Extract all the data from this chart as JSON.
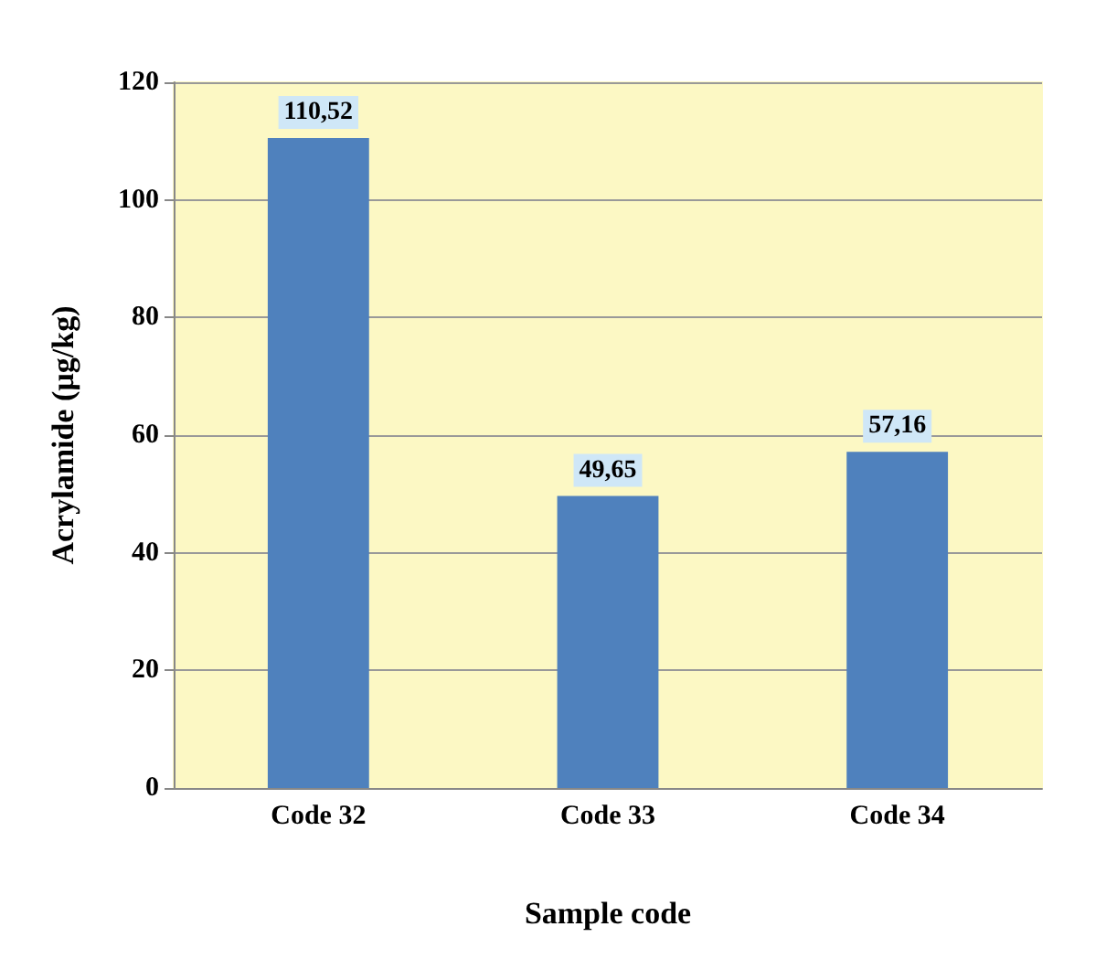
{
  "chart_data": {
    "type": "bar",
    "xlabel": "Sample code",
    "ylabel": "Acrylamide (µg/kg)",
    "categories": [
      "Code 32",
      "Code 33",
      "Code 34"
    ],
    "values": [
      110.52,
      49.65,
      57.16
    ],
    "value_labels": [
      "110,52",
      "49,65",
      "57,16"
    ],
    "color": "#4f81bd",
    "ylim": [
      0,
      120
    ],
    "yticks": [
      0,
      20,
      40,
      60,
      80,
      100,
      120
    ],
    "grid": "y"
  }
}
